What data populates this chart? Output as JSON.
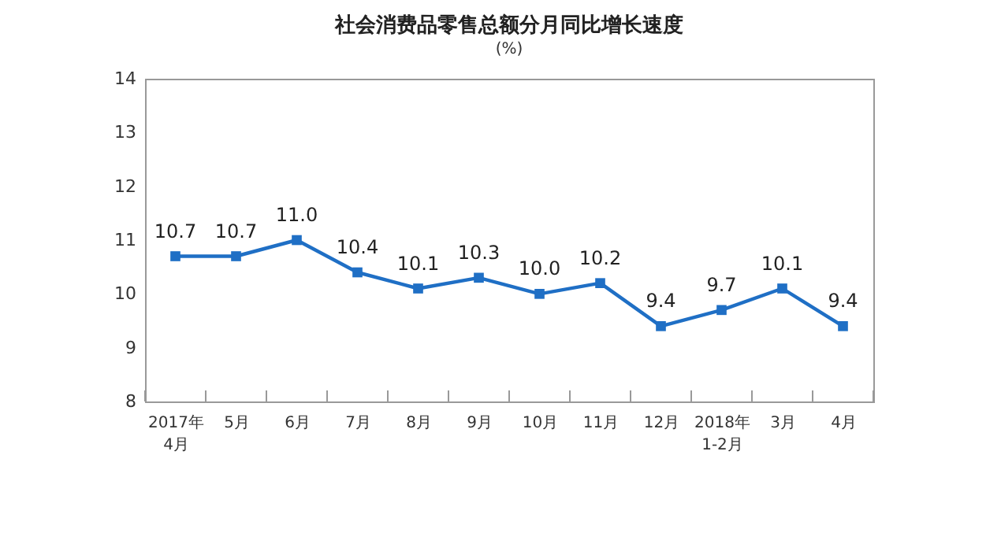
{
  "chart_data": {
    "type": "line",
    "title": "社会消费品零售总额分月同比增长速度",
    "ylabel": "(%)",
    "categories": [
      "2017年\n4月",
      "5月",
      "6月",
      "7月",
      "8月",
      "9月",
      "10月",
      "11月",
      "12月",
      "2018年\n1-2月",
      "3月",
      "4月"
    ],
    "values": [
      10.7,
      10.7,
      11.0,
      10.4,
      10.1,
      10.3,
      10.0,
      10.2,
      9.4,
      9.7,
      10.1,
      9.4
    ],
    "color": "#1f6fc5",
    "ylim": [
      8,
      14
    ],
    "yticks": [
      8,
      9,
      10,
      11,
      12,
      13,
      14
    ],
    "grid": false,
    "marker": "square",
    "data_labels": true,
    "value_labels": [
      "10.7",
      "10.7",
      "11.0",
      "10.4",
      "10.1",
      "10.3",
      "10.0",
      "10.2",
      "9.4",
      "9.7",
      "10.1",
      "9.4"
    ]
  }
}
